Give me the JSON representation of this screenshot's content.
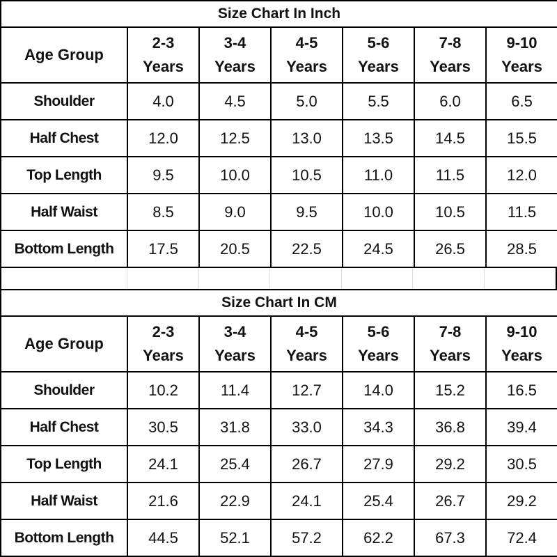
{
  "tables": [
    {
      "title": "Size Chart In Inch",
      "header": [
        "Age Group",
        "2-3 Years",
        "3-4 Years",
        "4-5 Years",
        "5-6 Years",
        "7-8 Years",
        "9-10 Years"
      ],
      "rows": [
        [
          "Shoulder",
          "4.0",
          "4.5",
          "5.0",
          "5.5",
          "6.0",
          "6.5"
        ],
        [
          "Half Chest",
          "12.0",
          "12.5",
          "13.0",
          "13.5",
          "14.5",
          "15.5"
        ],
        [
          "Top Length",
          "9.5",
          "10.0",
          "10.5",
          "11.0",
          "11.5",
          "12.0"
        ],
        [
          "Half Waist",
          "8.5",
          "9.0",
          "9.5",
          "10.0",
          "10.5",
          "11.5"
        ],
        [
          "Bottom Length",
          "17.5",
          "20.5",
          "22.5",
          "24.5",
          "26.5",
          "28.5"
        ]
      ]
    },
    {
      "title": "Size Chart In CM",
      "header": [
        "Age Group",
        "2-3 Years",
        "3-4 Years",
        "4-5 Years",
        "5-6 Years",
        "7-8 Years",
        "9-10 Years"
      ],
      "rows": [
        [
          "Shoulder",
          "10.2",
          "11.4",
          "12.7",
          "14.0",
          "15.2",
          "16.5"
        ],
        [
          "Half Chest",
          "30.5",
          "31.8",
          "33.0",
          "34.3",
          "36.8",
          "39.4"
        ],
        [
          "Top Length",
          "24.1",
          "25.4",
          "26.7",
          "27.9",
          "29.2",
          "30.5"
        ],
        [
          "Half Waist",
          "21.6",
          "22.9",
          "24.1",
          "25.4",
          "26.7",
          "29.2"
        ],
        [
          "Bottom Length",
          "44.5",
          "52.1",
          "57.2",
          "62.2",
          "67.3",
          "72.4"
        ]
      ]
    }
  ]
}
